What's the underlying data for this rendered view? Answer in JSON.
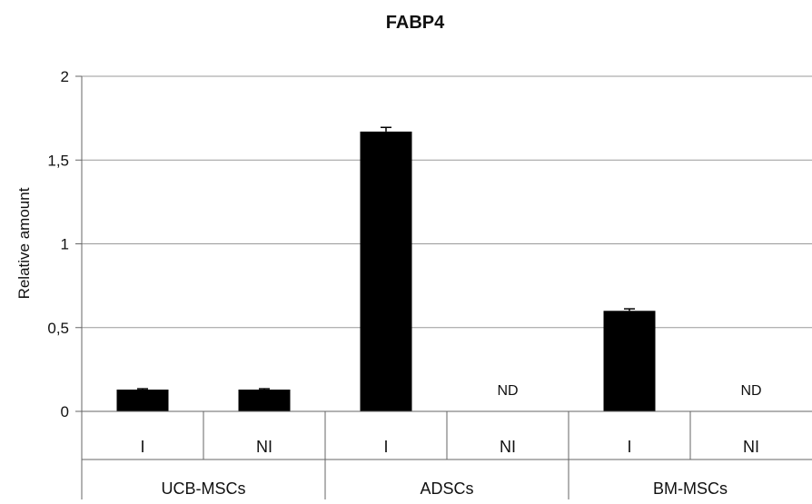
{
  "chart_data": {
    "type": "bar",
    "title": "FABP4",
    "ylabel": "Relative amount",
    "xlabel": "",
    "ylim": [
      0,
      2
    ],
    "yticks": [
      0,
      0.5,
      1,
      1.5,
      2
    ],
    "ytick_labels": [
      "0",
      "0,5",
      "1",
      "1,5",
      "2"
    ],
    "grid": true,
    "bar_color": "#000000",
    "groups": [
      "UCB-MSCs",
      "ADSCs",
      "BM-MSCs"
    ],
    "categories": [
      "I",
      "NI",
      "I",
      "NI",
      "I",
      "NI"
    ],
    "values": [
      0.13,
      0.13,
      1.67,
      null,
      0.6,
      null
    ],
    "errors": [
      0.005,
      0.005,
      0.025,
      null,
      0.012,
      null
    ],
    "value_labels": [
      null,
      null,
      null,
      "ND",
      null,
      "ND"
    ]
  }
}
